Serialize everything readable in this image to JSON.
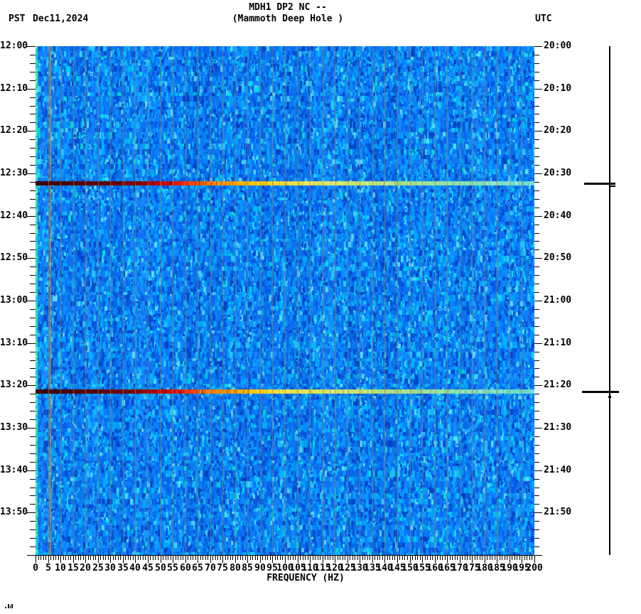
{
  "header": {
    "tz_left": "PST",
    "date": "Dec11,2024",
    "title": "MDH1 DP2 NC --",
    "subtitle": "(Mammoth Deep Hole )",
    "tz_right": "UTC"
  },
  "x_axis": {
    "label": "FREQUENCY (HZ)",
    "tick_labels": [
      "0",
      "5",
      "10",
      "15",
      "20",
      "25",
      "30",
      "35",
      "40",
      "45",
      "50",
      "55",
      "60",
      "65",
      "70",
      "75",
      "80",
      "85",
      "90",
      "95",
      "100",
      "105",
      "110",
      "115",
      "120",
      "125",
      "130",
      "135",
      "140",
      "145",
      "150",
      "155",
      "160",
      "165",
      "170",
      "175",
      "180",
      "185",
      "190",
      "195",
      "200"
    ]
  },
  "left_axis": {
    "timezone": "PST",
    "tick_labels": [
      "12:00",
      "12:10",
      "12:20",
      "12:30",
      "12:40",
      "12:50",
      "13:00",
      "13:10",
      "13:20",
      "13:30",
      "13:40",
      "13:50"
    ]
  },
  "right_axis": {
    "timezone": "UTC",
    "tick_labels": [
      "20:00",
      "20:10",
      "20:20",
      "20:30",
      "20:40",
      "20:50",
      "21:00",
      "21:10",
      "21:20",
      "21:30",
      "21:40",
      "21:50"
    ]
  },
  "chart_data": {
    "type": "heatmap",
    "title": "MDH1 DP2 NC --",
    "subtitle": "(Mammoth Deep Hole )",
    "station": "MDH1 DP2 NC",
    "station_name": "Mammoth Deep Hole",
    "date_local": "Dec11,2024",
    "xlabel": "FREQUENCY (HZ)",
    "x_range_hz": [
      0,
      200
    ],
    "x_major_tick_hz": 5,
    "x_minor_tick_hz": 1,
    "time_start_pst": "12:00",
    "time_end_pst": "14:00",
    "time_start_utc": "20:00",
    "time_end_utc": "22:00",
    "time_major_tick_min": 10,
    "time_minor_tick_min": 2,
    "grid_vertical_hz": 5,
    "grid_line_color": "#8f8468",
    "background_noise_palette": [
      "#0343c8",
      "#0857e0",
      "#0a6ef0",
      "#0f7ef8",
      "#1090ff",
      "#00a2ff",
      "#00b8fc",
      "#22ccff",
      "#5adcff",
      "#00e0d8"
    ],
    "persistent_tone": {
      "freq_hz": 5.7,
      "color": "#d08428"
    },
    "left_edge_artifact_colors": [
      "#2ee89a",
      "#30d8c0",
      "#62f0b0",
      "#18c8e0"
    ],
    "events": [
      {
        "time_pst": "12:32",
        "time_utc": "20:32",
        "minutes_after_start": 32.4,
        "spectrum": "dark red at low frequency grading to orange, yellow, then pale green-cyan at high frequency"
      },
      {
        "time_pst": "13:21",
        "time_utc": "21:21",
        "minutes_after_start": 81.4,
        "spectrum": "dark red at low frequency grading to orange, yellow, then pale green-cyan at high frequency"
      }
    ],
    "event_spectrum_gradient": [
      [
        0.0,
        "#3f0000"
      ],
      [
        0.1,
        "#5a0000"
      ],
      [
        0.175,
        "#700004"
      ],
      [
        0.21,
        "#8f0000"
      ],
      [
        0.24,
        "#b80000"
      ],
      [
        0.27,
        "#e00000"
      ],
      [
        0.3,
        "#ff2a00"
      ],
      [
        0.33,
        "#ff5d00"
      ],
      [
        0.36,
        "#ff8400"
      ],
      [
        0.4,
        "#ffa700"
      ],
      [
        0.44,
        "#ffc900"
      ],
      [
        0.5,
        "#f4e23c"
      ],
      [
        0.575,
        "#e2ea58"
      ],
      [
        0.65,
        "#c9e870"
      ],
      [
        0.75,
        "#a8e48c"
      ],
      [
        0.85,
        "#8ce4ae"
      ],
      [
        0.93,
        "#7de4c6"
      ],
      [
        1.0,
        "#70e0d2"
      ]
    ],
    "amplitude_bar_marker_times_pst": [
      "12:32",
      "13:21"
    ]
  }
}
